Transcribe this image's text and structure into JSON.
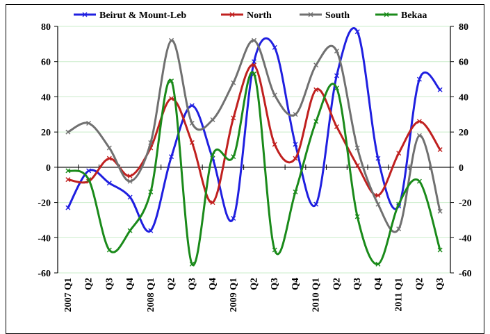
{
  "chart_data": {
    "type": "line",
    "title": "",
    "xlabel": "",
    "ylabel": "",
    "categories": [
      "2007 Q1",
      "Q2",
      "Q3",
      "Q4",
      "2008 Q1",
      "Q2",
      "Q3",
      "Q4",
      "2009 Q1",
      "Q2",
      "Q3",
      "Q4",
      "2010 Q1",
      "Q2",
      "Q3",
      "Q4",
      "2011 Q1",
      "Q2",
      "Q3"
    ],
    "ylim": [
      -60,
      80
    ],
    "yticks": [
      80,
      60,
      40,
      20,
      0,
      -20,
      -40,
      -60
    ],
    "y_tick_labels": [
      "80",
      "60",
      "40",
      "20",
      "0",
      "-20",
      "-40",
      "-60"
    ],
    "grid": "horizontal",
    "legend_position": "top",
    "marker": "x",
    "smooth": true,
    "series": [
      {
        "name": "Beirut & Mount-Leb",
        "color": "#1f1fe0",
        "values": [
          -23,
          -2,
          -9,
          -17,
          -36,
          6,
          35,
          5,
          -29,
          60,
          68,
          13,
          -21,
          52,
          77,
          5,
          -22,
          50,
          44
        ]
      },
      {
        "name": "North",
        "color": "#c0201f",
        "values": [
          -7,
          -8,
          5,
          -5,
          11,
          39,
          14,
          -20,
          28,
          58,
          13,
          5,
          44,
          23,
          1,
          -16,
          8,
          26,
          10
        ]
      },
      {
        "name": "South",
        "color": "#707070",
        "values": [
          20,
          25,
          11,
          -8,
          14,
          72,
          25,
          27,
          48,
          72,
          41,
          30,
          58,
          66,
          11,
          -21,
          -35,
          18,
          -25
        ]
      },
      {
        "name": "Bekaa",
        "color": "#1a8a1a",
        "values": [
          -2,
          -7,
          -47,
          -36,
          -14,
          49,
          -55,
          7,
          6,
          53,
          -47,
          -14,
          26,
          45,
          -28,
          -55,
          -21,
          -8,
          -47
        ]
      }
    ]
  }
}
